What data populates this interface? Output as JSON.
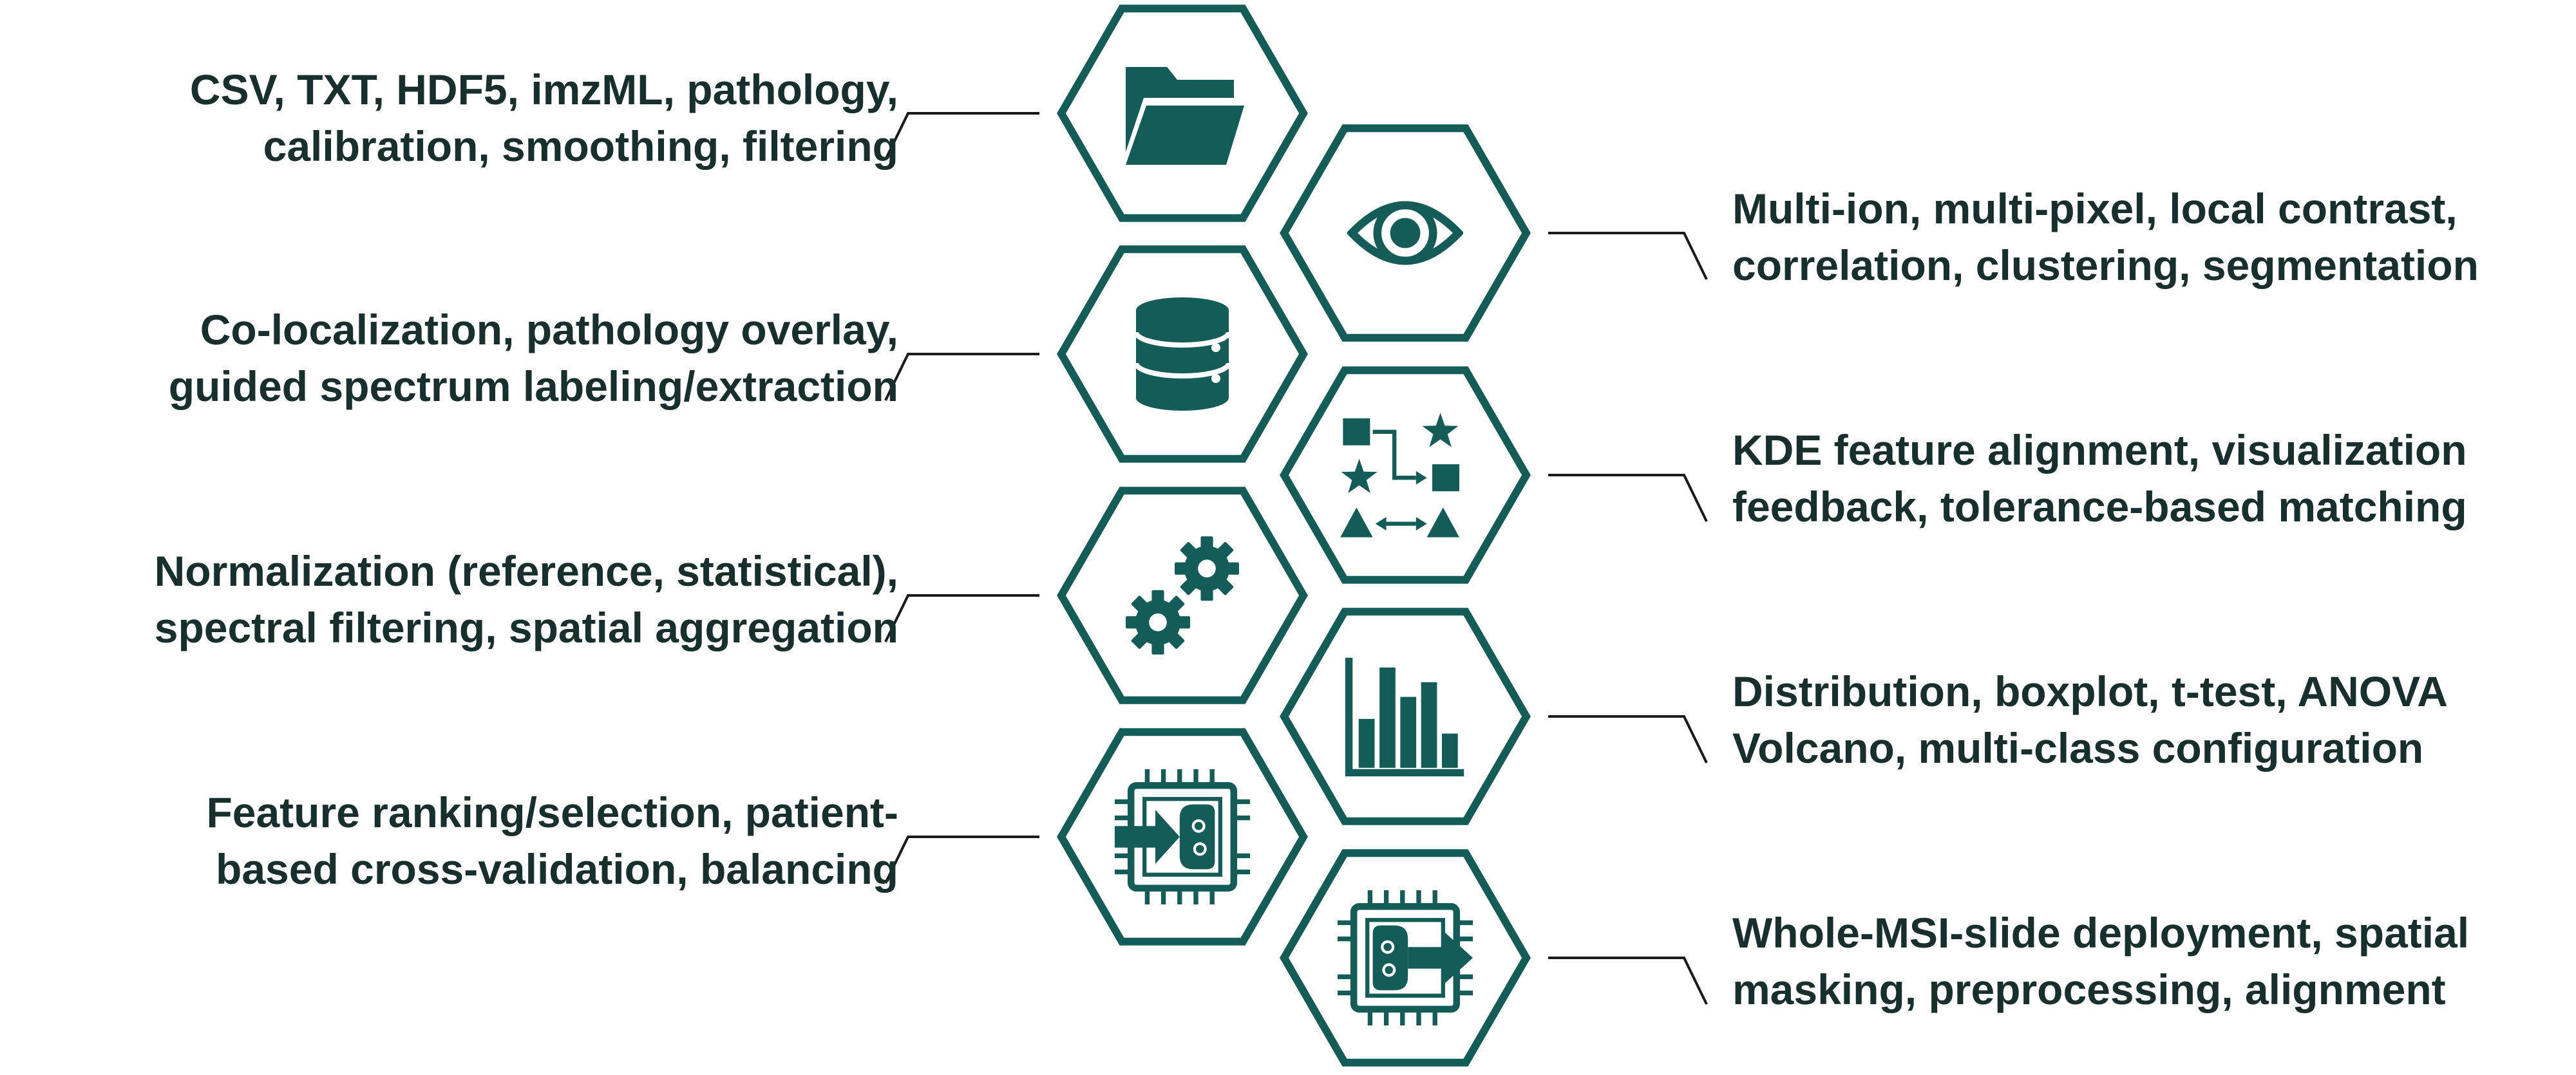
{
  "colors": {
    "primary": "#145c58",
    "text": "#17302e",
    "connector": "#1a1a1a",
    "background": "#ffffff"
  },
  "modules": [
    {
      "id": "data-import",
      "icon": "folder-icon",
      "lines": [
        "CSV, TXT, HDF5, imzML, pathology,",
        "calibration, smoothing, filtering"
      ]
    },
    {
      "id": "visualization",
      "icon": "eye-icon",
      "lines": [
        "Multi-ion, multi-pixel, local contrast,",
        "correlation, clustering, segmentation"
      ]
    },
    {
      "id": "labeling",
      "icon": "database-icon",
      "lines": [
        "Co-localization, pathology overlay,",
        "guided spectrum labeling/extraction"
      ]
    },
    {
      "id": "alignment",
      "icon": "shape-mapping-icon",
      "lines": [
        "KDE feature alignment, visualization",
        "feedback, tolerance-based matching"
      ]
    },
    {
      "id": "normalization",
      "icon": "gears-icon",
      "lines": [
        "Normalization (reference, statistical),",
        "spectral filtering, spatial aggregation"
      ]
    },
    {
      "id": "statistics",
      "icon": "bar-chart-icon",
      "lines": [
        "Distribution, boxplot, t-test, ANOVA",
        "Volcano, multi-class configuration"
      ]
    },
    {
      "id": "model-training",
      "icon": "chip-input-icon",
      "lines": [
        "Feature ranking/selection, patient-",
        "based cross-validation, balancing"
      ]
    },
    {
      "id": "deployment",
      "icon": "chip-output-icon",
      "lines": [
        "Whole-MSI-slide deployment, spatial",
        "masking, preprocessing, alignment"
      ]
    }
  ]
}
